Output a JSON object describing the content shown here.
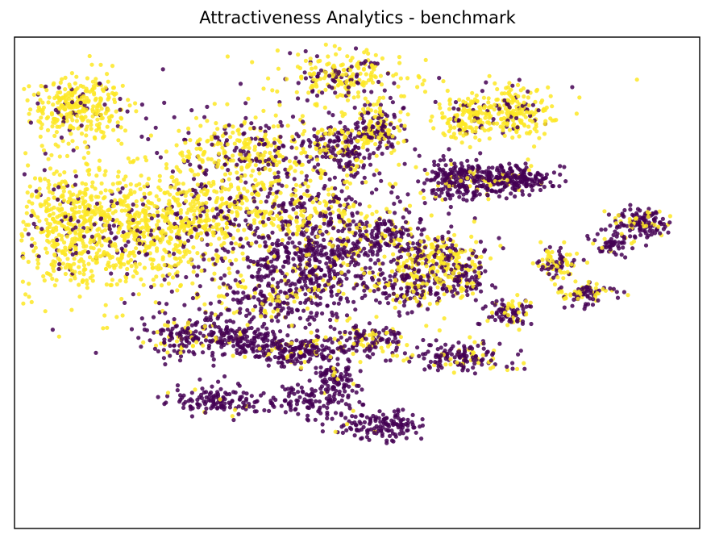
{
  "chart_data": {
    "type": "scatter",
    "title": "Attractiveness Analytics - benchmark",
    "xlabel": "",
    "ylabel": "",
    "xlim": [
      -100,
      100
    ],
    "ylim": [
      -100,
      100
    ],
    "axis_ticks": false,
    "grid": false,
    "legend": "none",
    "palette": {
      "dark": "#440154",
      "light": "#fde725"
    },
    "series": [
      {
        "color": "#fde725",
        "note_count": 0
      },
      {
        "color": "#440154",
        "note_count": 0
      }
    ],
    "clusters": [
      {
        "cx": -81,
        "cy": 72,
        "sx": 7,
        "sy": 7,
        "n": 320,
        "light_frac": 0.88
      },
      {
        "cx": -4,
        "cy": 84,
        "sx": 8,
        "sy": 5,
        "n": 220,
        "light_frac": 0.72
      },
      {
        "cx": 6,
        "cy": 63,
        "sx": 4,
        "sy": 5,
        "n": 150,
        "light_frac": 0.45
      },
      {
        "cx": 32,
        "cy": 67,
        "sx": 4,
        "sy": 5,
        "n": 150,
        "light_frac": 0.82
      },
      {
        "cx": 30,
        "cy": 42,
        "sx": 5,
        "sy": 4,
        "n": 200,
        "light_frac": 0.12
      },
      {
        "cx": -32,
        "cy": 53,
        "sx": 12,
        "sy": 8,
        "n": 320,
        "light_frac": 0.72
      },
      {
        "cx": -5,
        "cy": 55,
        "sx": 6,
        "sy": 5,
        "n": 150,
        "light_frac": 0.3
      },
      {
        "cx": -84,
        "cy": 23,
        "sx": 9,
        "sy": 14,
        "n": 520,
        "light_frac": 0.9
      },
      {
        "cx": -62,
        "cy": 18,
        "sx": 10,
        "sy": 12,
        "n": 420,
        "light_frac": 0.85
      },
      {
        "cx": -42,
        "cy": 26,
        "sx": 12,
        "sy": 10,
        "n": 420,
        "light_frac": 0.72
      },
      {
        "cx": -10,
        "cy": 26,
        "sx": 10,
        "sy": 8,
        "n": 280,
        "light_frac": 0.42
      },
      {
        "cx": -12,
        "cy": 8,
        "sx": 12,
        "sy": 8,
        "n": 360,
        "light_frac": 0.1
      },
      {
        "cx": -22,
        "cy": -6,
        "sx": 12,
        "sy": 7,
        "n": 260,
        "light_frac": 0.25
      },
      {
        "cx": 15,
        "cy": 0,
        "sx": 6,
        "sy": 6,
        "n": 160,
        "light_frac": 0.45
      },
      {
        "cx": 9,
        "cy": 20,
        "sx": 7,
        "sy": 4,
        "n": 120,
        "light_frac": 0.3
      },
      {
        "cx": 25,
        "cy": 9,
        "sx": 6,
        "sy": 5,
        "n": 220,
        "light_frac": 0.65
      },
      {
        "cx": 30,
        "cy": 1,
        "sx": 4,
        "sy": 4,
        "n": 100,
        "light_frac": 0.3
      },
      {
        "cx": -49,
        "cy": -22,
        "sx": 7,
        "sy": 4,
        "n": 180,
        "light_frac": 0.25
      },
      {
        "cx": -33,
        "cy": -24,
        "sx": 5,
        "sy": 3,
        "n": 110,
        "light_frac": 0.1
      },
      {
        "cx": -16,
        "cy": -28,
        "sx": 7,
        "sy": 3,
        "n": 200,
        "light_frac": 0.18
      },
      {
        "cx": 4,
        "cy": -23,
        "sx": 6,
        "sy": 3,
        "n": 130,
        "light_frac": 0.45
      },
      {
        "cx": -40,
        "cy": -48,
        "sx": 7,
        "sy": 3,
        "n": 130,
        "light_frac": 0.03
      },
      {
        "cx": -15,
        "cy": -48,
        "sx": 6,
        "sy": 3,
        "n": 100,
        "light_frac": 0.03
      },
      {
        "cx": -6,
        "cy": -40,
        "sx": 3,
        "sy": 4,
        "n": 90,
        "light_frac": 0.05
      },
      {
        "cx": 6,
        "cy": -58,
        "sx": 7,
        "sy": 3,
        "n": 140,
        "light_frac": 0.02
      },
      {
        "cx": 30,
        "cy": -30,
        "sx": 8,
        "sy": 3,
        "n": 150,
        "light_frac": 0.2
      },
      {
        "cx": 47,
        "cy": 70,
        "sx": 5,
        "sy": 5,
        "n": 200,
        "light_frac": 0.82
      },
      {
        "cx": 45,
        "cy": 42,
        "sx": 6,
        "sy": 3,
        "n": 220,
        "light_frac": 0.08
      },
      {
        "cx": 45,
        "cy": -12,
        "sx": 3,
        "sy": 3,
        "n": 90,
        "light_frac": 0.3
      },
      {
        "cx": 58,
        "cy": 8,
        "sx": 3,
        "sy": 3,
        "n": 90,
        "light_frac": 0.55
      },
      {
        "cx": 67,
        "cy": -4,
        "sx": 4,
        "sy": 2.5,
        "n": 90,
        "light_frac": 0.45
      },
      {
        "cx": 83,
        "cy": 24,
        "sx": 4,
        "sy": 3,
        "n": 140,
        "light_frac": 0.2
      },
      {
        "cx": 74,
        "cy": 15,
        "sx": 2.5,
        "sy": 3,
        "n": 50,
        "light_frac": 0.15
      },
      {
        "cx": -15,
        "cy": 40,
        "sx": 30,
        "sy": 25,
        "n": 280,
        "light_frac": 0.5
      }
    ]
  }
}
